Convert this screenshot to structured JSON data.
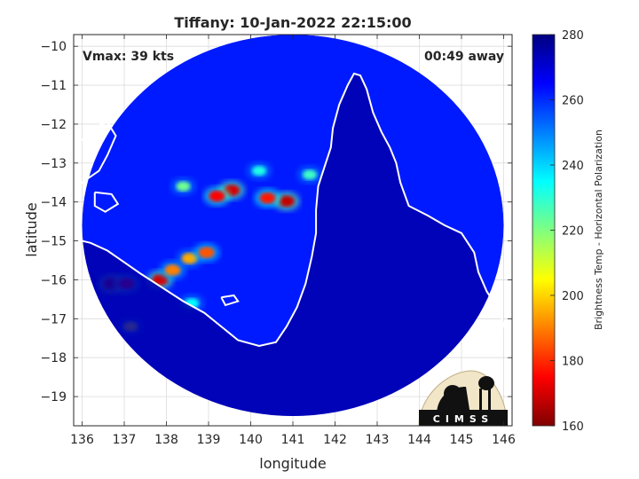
{
  "chart_data": {
    "type": "heatmap",
    "title": "Tiffany: 10-Jan-2022 22:15:00",
    "annotations": {
      "vmax": "Vmax: 39 kts",
      "away": "00:49 away"
    },
    "xlabel": "longitude",
    "ylabel": "latitude",
    "xlim": [
      135.8,
      146.2
    ],
    "ylim": [
      -19.75,
      -9.7
    ],
    "xticks": [
      136,
      137,
      138,
      139,
      140,
      141,
      142,
      143,
      144,
      145,
      146
    ],
    "yticks": [
      -10,
      -11,
      -12,
      -13,
      -14,
      -15,
      -16,
      -17,
      -18,
      -19
    ],
    "grid": true,
    "colorbar": {
      "label": "Brightness Temp - Horizontal Polarization",
      "range": [
        160,
        280
      ],
      "ticks": [
        160,
        180,
        200,
        220,
        240,
        260,
        280
      ],
      "colormap": "jet"
    },
    "swath": {
      "center": [
        141.0,
        -14.6
      ],
      "radius_lon": 5.0,
      "radius_lat": 4.9
    },
    "background_value": 262,
    "land_value": 275,
    "features": [
      {
        "lon": 139.55,
        "lat": -13.7,
        "value": 170
      },
      {
        "lon": 139.2,
        "lat": -13.85,
        "value": 175
      },
      {
        "lon": 140.85,
        "lat": -13.98,
        "value": 168
      },
      {
        "lon": 140.4,
        "lat": -13.9,
        "value": 178
      },
      {
        "lon": 136.7,
        "lat": -16.1,
        "value": 165
      },
      {
        "lon": 137.05,
        "lat": -16.1,
        "value": 175
      },
      {
        "lon": 137.85,
        "lat": -16.0,
        "value": 170
      },
      {
        "lon": 138.15,
        "lat": -15.75,
        "value": 190
      },
      {
        "lon": 138.55,
        "lat": -15.45,
        "value": 195
      },
      {
        "lon": 138.95,
        "lat": -15.3,
        "value": 185
      },
      {
        "lon": 137.15,
        "lat": -17.2,
        "value": 205
      },
      {
        "lon": 138.4,
        "lat": -13.6,
        "value": 222
      },
      {
        "lon": 141.4,
        "lat": -13.3,
        "value": 228
      },
      {
        "lon": 140.2,
        "lat": -13.2,
        "value": 232
      },
      {
        "lon": 138.6,
        "lat": -16.6,
        "value": 235
      }
    ],
    "logo": "CIMSS"
  }
}
